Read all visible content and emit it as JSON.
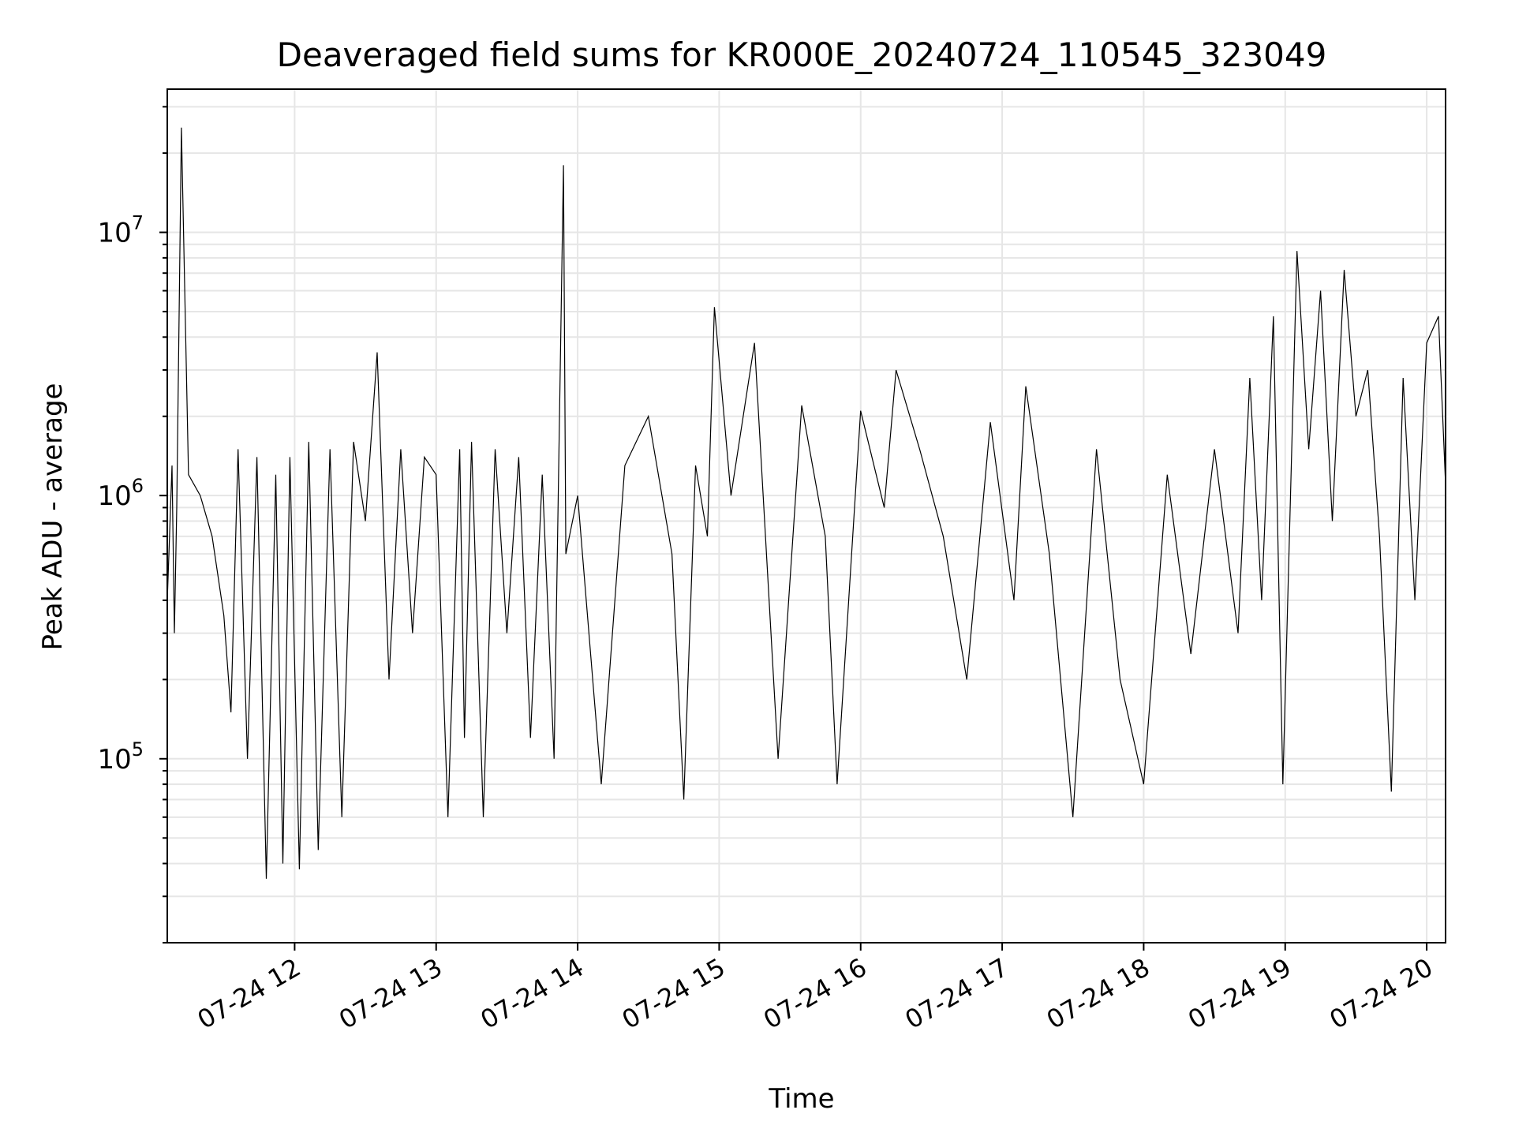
{
  "chart_data": {
    "type": "line",
    "title": "Deaveraged field sums for KR000E_20240724_110545_323049",
    "xlabel": "Time",
    "ylabel": "Peak ADU - average",
    "yscale": "log",
    "ylim": [
      20000,
      35000000
    ],
    "xlim": [
      "2024-07-24 11:06",
      "2024-07-24 20:08"
    ],
    "grid": true,
    "line_color": "#000000",
    "grid_color": "#e6e6e6",
    "x_ticks": [
      {
        "t": "2024-07-24 12:00",
        "label": "07-24 12"
      },
      {
        "t": "2024-07-24 13:00",
        "label": "07-24 13"
      },
      {
        "t": "2024-07-24 14:00",
        "label": "07-24 14"
      },
      {
        "t": "2024-07-24 15:00",
        "label": "07-24 15"
      },
      {
        "t": "2024-07-24 16:00",
        "label": "07-24 16"
      },
      {
        "t": "2024-07-24 17:00",
        "label": "07-24 17"
      },
      {
        "t": "2024-07-24 18:00",
        "label": "07-24 18"
      },
      {
        "t": "2024-07-24 19:00",
        "label": "07-24 19"
      },
      {
        "t": "2024-07-24 20:00",
        "label": "07-24 20"
      }
    ],
    "y_ticks": [
      {
        "value": 100000,
        "base": "10",
        "exp": "5"
      },
      {
        "value": 1000000,
        "base": "10",
        "exp": "6"
      },
      {
        "value": 10000000,
        "base": "10",
        "exp": "7"
      }
    ],
    "series": [
      {
        "x": [
          "2024-07-24 11:06",
          "2024-07-24 11:08",
          "2024-07-24 11:09",
          "2024-07-24 11:10",
          "2024-07-24 11:12",
          "2024-07-24 11:15",
          "2024-07-24 11:20",
          "2024-07-24 11:25",
          "2024-07-24 11:30",
          "2024-07-24 11:33",
          "2024-07-24 11:36",
          "2024-07-24 11:40",
          "2024-07-24 11:44",
          "2024-07-24 11:48",
          "2024-07-24 11:52",
          "2024-07-24 11:55",
          "2024-07-24 11:58",
          "2024-07-24 12:02",
          "2024-07-24 12:06",
          "2024-07-24 12:10",
          "2024-07-24 12:15",
          "2024-07-24 12:20",
          "2024-07-24 12:25",
          "2024-07-24 12:30",
          "2024-07-24 12:35",
          "2024-07-24 12:40",
          "2024-07-24 12:45",
          "2024-07-24 12:50",
          "2024-07-24 12:55",
          "2024-07-24 13:00",
          "2024-07-24 13:05",
          "2024-07-24 13:10",
          "2024-07-24 13:12",
          "2024-07-24 13:15",
          "2024-07-24 13:20",
          "2024-07-24 13:25",
          "2024-07-24 13:30",
          "2024-07-24 13:35",
          "2024-07-24 13:40",
          "2024-07-24 13:45",
          "2024-07-24 13:50",
          "2024-07-24 13:54",
          "2024-07-24 13:55",
          "2024-07-24 14:00",
          "2024-07-24 14:10",
          "2024-07-24 14:20",
          "2024-07-24 14:30",
          "2024-07-24 14:40",
          "2024-07-24 14:45",
          "2024-07-24 14:50",
          "2024-07-24 14:55",
          "2024-07-24 14:58",
          "2024-07-24 15:05",
          "2024-07-24 15:15",
          "2024-07-24 15:25",
          "2024-07-24 15:35",
          "2024-07-24 15:45",
          "2024-07-24 15:50",
          "2024-07-24 16:00",
          "2024-07-24 16:10",
          "2024-07-24 16:15",
          "2024-07-24 16:25",
          "2024-07-24 16:35",
          "2024-07-24 16:45",
          "2024-07-24 16:55",
          "2024-07-24 17:05",
          "2024-07-24 17:10",
          "2024-07-24 17:20",
          "2024-07-24 17:30",
          "2024-07-24 17:40",
          "2024-07-24 17:50",
          "2024-07-24 18:00",
          "2024-07-24 18:10",
          "2024-07-24 18:20",
          "2024-07-24 18:30",
          "2024-07-24 18:40",
          "2024-07-24 18:45",
          "2024-07-24 18:50",
          "2024-07-24 18:55",
          "2024-07-24 18:59",
          "2024-07-24 19:05",
          "2024-07-24 19:10",
          "2024-07-24 19:15",
          "2024-07-24 19:20",
          "2024-07-24 19:25",
          "2024-07-24 19:30",
          "2024-07-24 19:35",
          "2024-07-24 19:40",
          "2024-07-24 19:45",
          "2024-07-24 19:50",
          "2024-07-24 19:55",
          "2024-07-24 20:00",
          "2024-07-24 20:05",
          "2024-07-24 20:08"
        ],
        "y": [
          400000,
          1300000,
          300000,
          900000,
          25000000,
          1200000,
          1000000,
          700000,
          350000,
          150000,
          1500000,
          100000,
          1400000,
          35000,
          1200000,
          40000,
          1400000,
          38000,
          1600000,
          45000,
          1500000,
          60000,
          1600000,
          800000,
          3500000,
          200000,
          1500000,
          300000,
          1400000,
          1200000,
          60000,
          1500000,
          120000,
          1600000,
          60000,
          1500000,
          300000,
          1400000,
          120000,
          1200000,
          100000,
          18000000,
          600000,
          1000000,
          80000,
          1300000,
          2000000,
          600000,
          70000,
          1300000,
          700000,
          5200000,
          1000000,
          3800000,
          100000,
          2200000,
          700000,
          80000,
          2100000,
          900000,
          3000000,
          1500000,
          700000,
          200000,
          1900000,
          400000,
          2600000,
          600000,
          60000,
          1500000,
          200000,
          80000,
          1200000,
          250000,
          1500000,
          300000,
          2800000,
          400000,
          4800000,
          80000,
          8500000,
          1500000,
          6000000,
          800000,
          7200000,
          2000000,
          3000000,
          700000,
          75000,
          2800000,
          400000,
          3800000,
          4800000,
          1100000
        ]
      }
    ]
  }
}
